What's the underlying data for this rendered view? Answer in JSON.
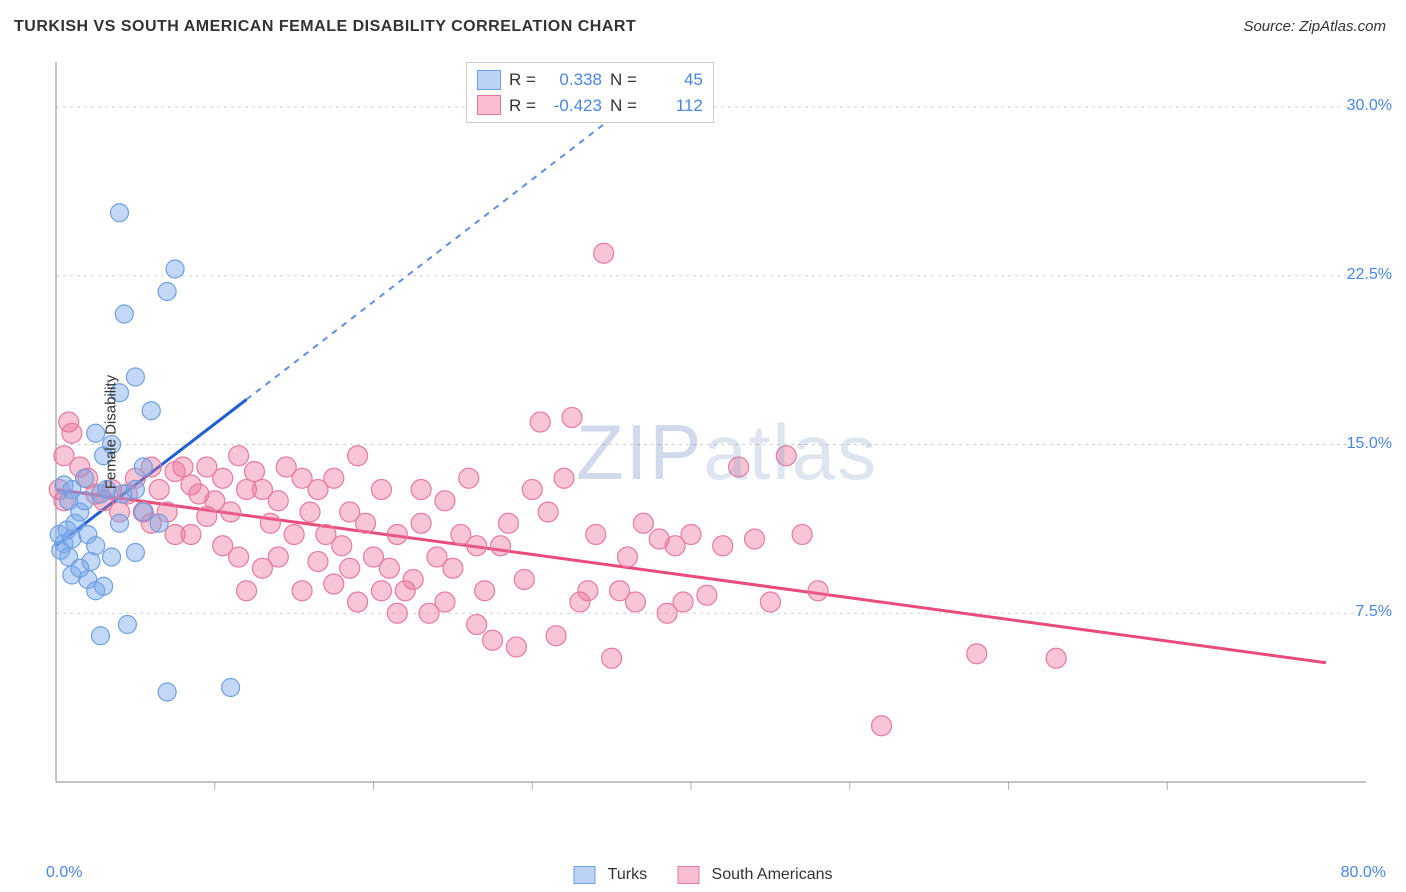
{
  "title": "TURKISH VS SOUTH AMERICAN FEMALE DISABILITY CORRELATION CHART",
  "source_label": "Source: ZipAtlas.com",
  "ylabel": "Female Disability",
  "watermark_a": "ZIP",
  "watermark_b": "atlas",
  "plot": {
    "bg": "#ffffff",
    "grid_color": "#d0d0d0",
    "axis_color": "#888888",
    "tick_color": "#b0b0b0",
    "ylabel_color": "#4a86e8"
  },
  "axes": {
    "xlim": [
      0,
      80
    ],
    "ylim": [
      0,
      32
    ],
    "xtick_labels": {
      "min": "0.0%",
      "max": "80.0%"
    },
    "xtick_positions": [
      10,
      20,
      30,
      40,
      50,
      60,
      70
    ],
    "ygrid": [
      7.5,
      15.0,
      22.5,
      30.0
    ],
    "ytick_labels": [
      "7.5%",
      "15.0%",
      "22.5%",
      "30.0%"
    ]
  },
  "stats": {
    "r_label": "R =",
    "n_label": "N =",
    "series1": {
      "r": "0.338",
      "n": "45"
    },
    "series2": {
      "r": "-0.423",
      "n": "112"
    }
  },
  "series": {
    "turks": {
      "label": "Turks",
      "color_fill": "rgba(120,169,235,0.45)",
      "color_stroke": "#6fa0e0",
      "swatch_fill": "rgba(120,169,235,0.5)",
      "swatch_border": "#6fa0e0",
      "line_color": "#1f5fd1",
      "marker_r": 9,
      "line": {
        "x1": 0,
        "y1": 10.5,
        "x2": 12,
        "y2": 17.0,
        "x_extend": 35,
        "y_extend": 29.5
      },
      "points": [
        [
          0.2,
          11.0
        ],
        [
          0.3,
          10.3
        ],
        [
          0.5,
          10.6
        ],
        [
          0.7,
          11.2
        ],
        [
          0.8,
          10.0
        ],
        [
          1.0,
          10.8
        ],
        [
          1.2,
          11.5
        ],
        [
          1.5,
          12.0
        ],
        [
          1.0,
          13.0
        ],
        [
          0.5,
          13.2
        ],
        [
          1.8,
          12.5
        ],
        [
          2.0,
          11.0
        ],
        [
          2.2,
          9.8
        ],
        [
          2.5,
          10.5
        ],
        [
          2.8,
          12.8
        ],
        [
          3.0,
          14.5
        ],
        [
          3.2,
          13.0
        ],
        [
          2.0,
          9.0
        ],
        [
          2.5,
          8.5
        ],
        [
          3.0,
          8.7
        ],
        [
          3.5,
          10.0
        ],
        [
          4.0,
          11.5
        ],
        [
          4.2,
          12.8
        ],
        [
          5.0,
          13.0
        ],
        [
          5.5,
          14.0
        ],
        [
          6.0,
          16.5
        ],
        [
          5.5,
          12.0
        ],
        [
          3.5,
          15.0
        ],
        [
          2.5,
          15.5
        ],
        [
          4.0,
          17.3
        ],
        [
          4.3,
          20.8
        ],
        [
          5.0,
          18.0
        ],
        [
          7.0,
          21.8
        ],
        [
          7.5,
          22.8
        ],
        [
          4.0,
          25.3
        ],
        [
          2.8,
          6.5
        ],
        [
          4.5,
          7.0
        ],
        [
          7.0,
          4.0
        ],
        [
          11.0,
          4.2
        ],
        [
          1.0,
          9.2
        ],
        [
          1.5,
          9.5
        ],
        [
          0.8,
          12.5
        ],
        [
          1.8,
          13.5
        ],
        [
          6.5,
          11.5
        ],
        [
          5.0,
          10.2
        ]
      ]
    },
    "south_americans": {
      "label": "South Americans",
      "color_fill": "rgba(235,110,150,0.4)",
      "color_stroke": "#e77ba0",
      "swatch_fill": "rgba(235,110,150,0.45)",
      "swatch_border": "#e77ba0",
      "line_color": "#e94b7a",
      "marker_r": 10,
      "line": {
        "x1": 0,
        "y1": 13.0,
        "x2": 80,
        "y2": 5.3
      },
      "points": [
        [
          0.2,
          13.0
        ],
        [
          0.5,
          12.5
        ],
        [
          0.5,
          14.5
        ],
        [
          0.8,
          16.0
        ],
        [
          1.0,
          15.5
        ],
        [
          1.5,
          14.0
        ],
        [
          2.0,
          13.5
        ],
        [
          2.5,
          12.8
        ],
        [
          3.0,
          12.5
        ],
        [
          3.5,
          13.0
        ],
        [
          4.0,
          12.0
        ],
        [
          4.5,
          12.8
        ],
        [
          5.0,
          13.5
        ],
        [
          5.5,
          12.0
        ],
        [
          6.0,
          11.5
        ],
        [
          6.5,
          13.0
        ],
        [
          7.0,
          12.0
        ],
        [
          7.5,
          11.0
        ],
        [
          8.0,
          14.0
        ],
        [
          8.5,
          13.2
        ],
        [
          9.0,
          12.8
        ],
        [
          9.5,
          11.8
        ],
        [
          10.0,
          12.5
        ],
        [
          10.5,
          13.5
        ],
        [
          11.0,
          12.0
        ],
        [
          11.5,
          14.5
        ],
        [
          12.0,
          13.0
        ],
        [
          12.5,
          13.8
        ],
        [
          13.0,
          13.0
        ],
        [
          13.5,
          11.5
        ],
        [
          14.0,
          12.5
        ],
        [
          14.5,
          14.0
        ],
        [
          15.0,
          11.0
        ],
        [
          15.5,
          13.5
        ],
        [
          16.0,
          12.0
        ],
        [
          16.5,
          13.0
        ],
        [
          17.0,
          11.0
        ],
        [
          17.5,
          13.5
        ],
        [
          18.0,
          10.5
        ],
        [
          18.5,
          12.0
        ],
        [
          19.0,
          14.5
        ],
        [
          19.5,
          11.5
        ],
        [
          20.0,
          10.0
        ],
        [
          20.5,
          13.0
        ],
        [
          21.0,
          9.5
        ],
        [
          21.5,
          11.0
        ],
        [
          22.0,
          8.5
        ],
        [
          22.5,
          9.0
        ],
        [
          23.0,
          11.5
        ],
        [
          23.5,
          7.5
        ],
        [
          24.0,
          10.0
        ],
        [
          24.5,
          8.0
        ],
        [
          25.0,
          9.5
        ],
        [
          25.5,
          11.0
        ],
        [
          26.0,
          13.5
        ],
        [
          26.5,
          7.0
        ],
        [
          27.0,
          8.5
        ],
        [
          27.5,
          6.3
        ],
        [
          28.0,
          10.5
        ],
        [
          28.5,
          11.5
        ],
        [
          29.0,
          6.0
        ],
        [
          29.5,
          9.0
        ],
        [
          30.0,
          13.0
        ],
        [
          30.5,
          16.0
        ],
        [
          31.0,
          12.0
        ],
        [
          31.5,
          6.5
        ],
        [
          32.0,
          13.5
        ],
        [
          32.5,
          16.2
        ],
        [
          33.0,
          8.0
        ],
        [
          34.0,
          11.0
        ],
        [
          34.5,
          23.5
        ],
        [
          35.0,
          5.5
        ],
        [
          35.5,
          8.5
        ],
        [
          36.0,
          10.0
        ],
        [
          37.0,
          11.5
        ],
        [
          38.0,
          10.8
        ],
        [
          38.5,
          7.5
        ],
        [
          39.0,
          10.5
        ],
        [
          39.5,
          8.0
        ],
        [
          40.0,
          11.0
        ],
        [
          41.0,
          8.3
        ],
        [
          42.0,
          10.5
        ],
        [
          43.0,
          14.0
        ],
        [
          44.0,
          10.8
        ],
        [
          45.0,
          8.0
        ],
        [
          46.0,
          14.5
        ],
        [
          47.0,
          11.0
        ],
        [
          48.0,
          8.5
        ],
        [
          52.0,
          2.5
        ],
        [
          58.0,
          5.7
        ],
        [
          63.0,
          5.5
        ],
        [
          12.0,
          8.5
        ],
        [
          13.0,
          9.5
        ],
        [
          14.0,
          10.0
        ],
        [
          15.5,
          8.5
        ],
        [
          16.5,
          9.8
        ],
        [
          17.5,
          8.8
        ],
        [
          18.5,
          9.5
        ],
        [
          6.0,
          14.0
        ],
        [
          7.5,
          13.8
        ],
        [
          8.5,
          11.0
        ],
        [
          9.5,
          14.0
        ],
        [
          10.5,
          10.5
        ],
        [
          11.5,
          10.0
        ],
        [
          19.0,
          8.0
        ],
        [
          20.5,
          8.5
        ],
        [
          21.5,
          7.5
        ],
        [
          23.0,
          13.0
        ],
        [
          24.5,
          12.5
        ],
        [
          26.5,
          10.5
        ],
        [
          33.5,
          8.5
        ],
        [
          36.5,
          8.0
        ]
      ]
    }
  },
  "bottom_legend": {
    "item1": "Turks",
    "item2": "South Americans"
  }
}
